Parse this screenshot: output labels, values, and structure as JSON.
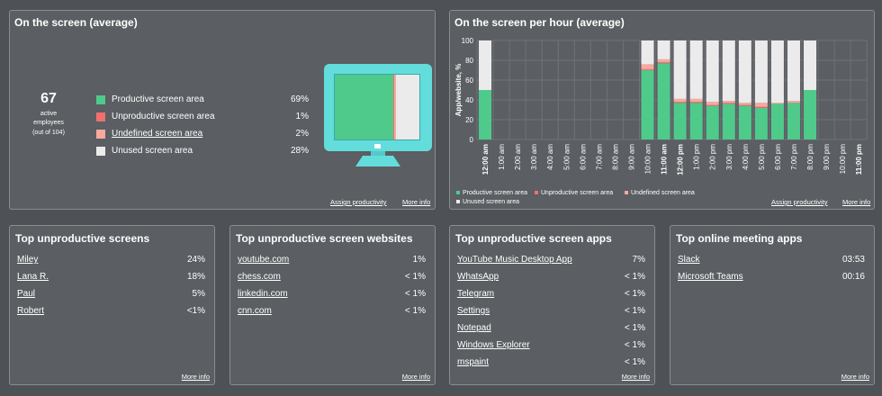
{
  "colors": {
    "productive": "#4fca8b",
    "unproductive": "#f0706d",
    "undefined": "#f7a9a0",
    "unused": "#ebebeb",
    "monitor": "#63dcdc"
  },
  "summary": {
    "title": "On the screen (average)",
    "count": "67",
    "count_label_1": "active",
    "count_label_2": "employees",
    "count_label_3": "(out of 104)",
    "legend": [
      {
        "label": "Productive screen area",
        "value": "69%",
        "key": "productive",
        "underline": false
      },
      {
        "label": "Unproductive screen area",
        "value": "1%",
        "key": "unproductive",
        "underline": false
      },
      {
        "label": "Undefined screen area",
        "value": "2%",
        "key": "undefined",
        "underline": true
      },
      {
        "label": "Unused screen area",
        "value": "28%",
        "key": "unused",
        "underline": false
      }
    ],
    "monitor_icon": "monitor-icon",
    "assign_link": "Assign productivity",
    "more_link": "More info"
  },
  "hourly": {
    "title": "On the screen per hour (average)",
    "assign_link": "Assign productivity",
    "more_link": "More info",
    "legend": [
      "Productive screen area",
      "Unproductive screen area",
      "Undefined screen area",
      "Unused screen area"
    ]
  },
  "chart_data": {
    "type": "bar",
    "stacked": true,
    "title": "On the screen per hour (average)",
    "ylabel": "App/website, %",
    "ylim": [
      0,
      100
    ],
    "yticks": [
      "0",
      "20",
      "40",
      "60",
      "80",
      "100"
    ],
    "categories": [
      "12:00 am",
      "1:00 am",
      "2:00 am",
      "3:00 am",
      "4:00 am",
      "5:00 am",
      "6:00 am",
      "7:00 am",
      "8:00 am",
      "9:00 am",
      "10:00 am",
      "11:00 am",
      "12:00 pm",
      "1:00 pm",
      "2:00 pm",
      "3:00 pm",
      "4:00 pm",
      "5:00 pm",
      "6:00 pm",
      "7:00 pm",
      "8:00 pm",
      "9:00 pm",
      "10:00 pm",
      "11:00 pm"
    ],
    "bold_categories": [
      "12:00 am",
      "11:00 am",
      "12:00 pm",
      "11:00 pm"
    ],
    "series": [
      {
        "name": "Productive screen area",
        "key": "productive",
        "values": [
          50,
          0,
          0,
          0,
          0,
          0,
          0,
          0,
          0,
          0,
          70,
          77,
          37,
          37,
          34,
          36,
          34,
          32,
          36,
          37,
          50,
          0,
          0,
          0
        ]
      },
      {
        "name": "Unproductive screen area",
        "key": "unproductive",
        "values": [
          0,
          0,
          0,
          0,
          0,
          0,
          0,
          0,
          0,
          0,
          1,
          1,
          1,
          1,
          1,
          1,
          1,
          1,
          0,
          0,
          0,
          0,
          0,
          0
        ]
      },
      {
        "name": "Undefined screen area",
        "key": "undefined",
        "values": [
          0,
          0,
          0,
          0,
          0,
          0,
          0,
          0,
          0,
          0,
          5,
          3,
          3,
          3,
          3,
          2,
          2,
          4,
          1,
          2,
          0,
          0,
          0,
          0
        ]
      },
      {
        "name": "Unused screen area",
        "key": "unused",
        "values": [
          50,
          0,
          0,
          0,
          0,
          0,
          0,
          0,
          0,
          0,
          24,
          19,
          59,
          59,
          62,
          61,
          63,
          63,
          63,
          61,
          50,
          0,
          0,
          0
        ]
      }
    ]
  },
  "panels": [
    {
      "title": "Top unproductive screens",
      "more_link": "More info",
      "rows": [
        {
          "name": "Miley",
          "value": "24%"
        },
        {
          "name": "Lana R.",
          "value": "18%"
        },
        {
          "name": "Paul",
          "value": "5%"
        },
        {
          "name": "Robert",
          "value": "<1%"
        }
      ]
    },
    {
      "title": "Top unproductive screen websites",
      "more_link": "More info",
      "rows": [
        {
          "name": "youtube.com",
          "value": "1%"
        },
        {
          "name": "chess.com",
          "value": "< 1%"
        },
        {
          "name": "linkedin.com",
          "value": "< 1%"
        },
        {
          "name": "cnn.com",
          "value": "< 1%"
        }
      ]
    },
    {
      "title": "Top unproductive screen apps",
      "more_link": "More info",
      "rows": [
        {
          "name": "YouTube Music Desktop App",
          "value": "7%"
        },
        {
          "name": "WhatsApp",
          "value": "< 1%"
        },
        {
          "name": "Telegram",
          "value": "< 1%"
        },
        {
          "name": "Settings",
          "value": "< 1%"
        },
        {
          "name": "Notepad",
          "value": "< 1%"
        },
        {
          "name": "Windows Explorer",
          "value": "< 1%"
        },
        {
          "name": "mspaint",
          "value": "< 1%"
        }
      ]
    },
    {
      "title": "Top online meeting apps",
      "more_link": "More info",
      "rows": [
        {
          "name": "Slack",
          "value": "03:53"
        },
        {
          "name": "Microsoft Teams",
          "value": "00:16"
        }
      ]
    }
  ]
}
